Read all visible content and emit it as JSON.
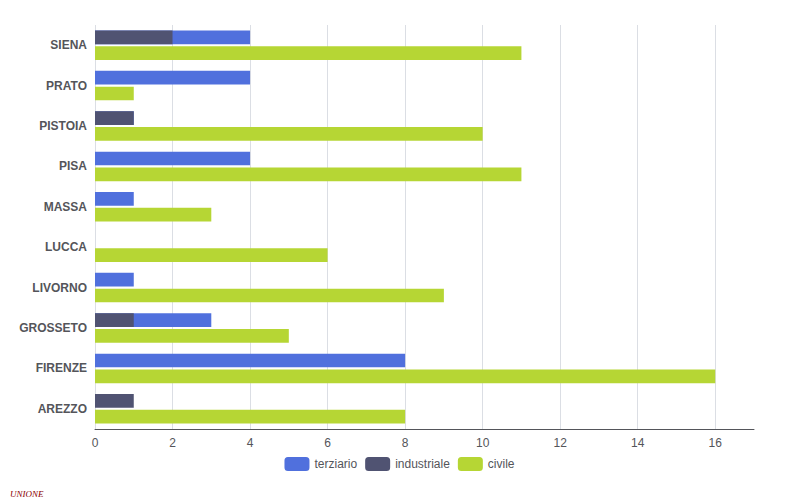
{
  "chart_data": {
    "type": "bar",
    "orientation": "horizontal",
    "categories": [
      "SIENA",
      "PRATO",
      "PISTOIA",
      "PISA",
      "MASSA",
      "LUCCA",
      "LIVORNO",
      "GROSSETO",
      "FIRENZE",
      "AREZZO"
    ],
    "series": [
      {
        "name": "terziario",
        "values": [
          4,
          4,
          1,
          4,
          1,
          0,
          1,
          3,
          8,
          0
        ]
      },
      {
        "name": "industriale",
        "values": [
          2,
          0,
          1,
          0,
          0,
          0,
          0,
          1,
          0,
          1
        ]
      },
      {
        "name": "civile",
        "values": [
          11,
          1,
          10,
          11,
          3,
          6,
          9,
          5,
          16,
          8
        ]
      }
    ],
    "xlim": [
      0,
      17
    ],
    "xticks": [
      0,
      2,
      4,
      6,
      8,
      10,
      12,
      14,
      16
    ],
    "grid": true,
    "legend": "bottom",
    "annotations": [
      {
        "text": "UNIONE",
        "color": "#8B0000"
      }
    ]
  }
}
